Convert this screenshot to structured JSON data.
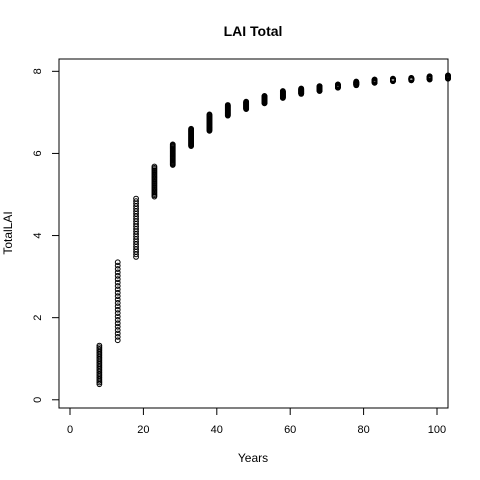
{
  "chart_data": {
    "type": "scatter",
    "title": "LAI Total",
    "xlabel": "Years",
    "ylabel": "TotalLAI",
    "xlim": [
      -3,
      103
    ],
    "ylim": [
      -0.2,
      8.3
    ],
    "xticks": [
      0,
      20,
      40,
      60,
      80,
      100
    ],
    "yticks": [
      0,
      2,
      4,
      6,
      8
    ],
    "grid": false,
    "legend": "none",
    "marker": "open-circle",
    "marker_color": "#000000",
    "groups": [
      {
        "x": 8,
        "y_min": 0.38,
        "y_max": 1.32
      },
      {
        "x": 13,
        "y_min": 1.45,
        "y_max": 3.35
      },
      {
        "x": 18,
        "y_min": 3.48,
        "y_max": 4.9
      },
      {
        "x": 23,
        "y_min": 4.95,
        "y_max": 5.68
      },
      {
        "x": 28,
        "y_min": 5.72,
        "y_max": 6.22
      },
      {
        "x": 33,
        "y_min": 6.18,
        "y_max": 6.6
      },
      {
        "x": 38,
        "y_min": 6.55,
        "y_max": 6.95
      },
      {
        "x": 43,
        "y_min": 6.92,
        "y_max": 7.18
      },
      {
        "x": 48,
        "y_min": 7.08,
        "y_max": 7.26
      },
      {
        "x": 53,
        "y_min": 7.22,
        "y_max": 7.4
      },
      {
        "x": 58,
        "y_min": 7.35,
        "y_max": 7.52
      },
      {
        "x": 63,
        "y_min": 7.45,
        "y_max": 7.58
      },
      {
        "x": 68,
        "y_min": 7.52,
        "y_max": 7.64
      },
      {
        "x": 73,
        "y_min": 7.6,
        "y_max": 7.68
      },
      {
        "x": 78,
        "y_min": 7.66,
        "y_max": 7.75
      },
      {
        "x": 83,
        "y_min": 7.72,
        "y_max": 7.8
      },
      {
        "x": 88,
        "y_min": 7.76,
        "y_max": 7.82
      },
      {
        "x": 93,
        "y_min": 7.78,
        "y_max": 7.84
      },
      {
        "x": 98,
        "y_min": 7.8,
        "y_max": 7.88
      },
      {
        "x": 103,
        "y_min": 7.82,
        "y_max": 7.9
      }
    ]
  }
}
